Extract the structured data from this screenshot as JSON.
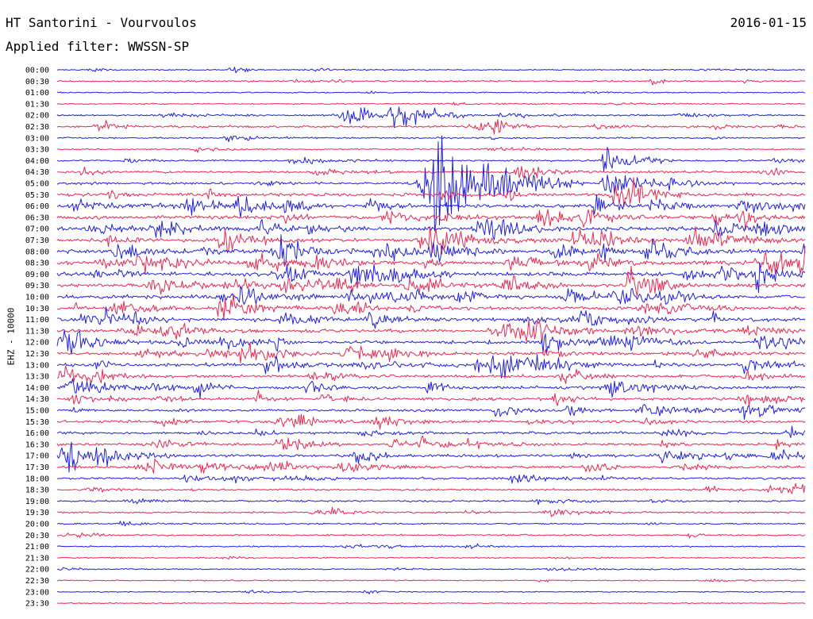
{
  "header": {
    "title": "HT Santorini - Vourvoulos",
    "date": "2016-01-15",
    "filter": "Applied filter: WWSSN-SP",
    "channel": "EHZ - 10000"
  },
  "colors": {
    "blue": "#1f1fe6",
    "red": "#f0264f",
    "text": "#000000",
    "background": "#ffffff"
  },
  "chart_data": {
    "type": "line",
    "title": "HT Santorini - Vourvoulos",
    "subtitle": "Applied filter: WWSSN-SP",
    "ylabel": "EHZ - 10000",
    "xlabel": "",
    "grid": false,
    "legend": "none",
    "x_range_minutes": [
      0,
      30
    ],
    "trace_labels": [
      "00:00",
      "00:30",
      "01:00",
      "01:30",
      "02:00",
      "02:30",
      "03:00",
      "03:30",
      "04:00",
      "04:30",
      "05:00",
      "05:30",
      "06:00",
      "06:30",
      "07:00",
      "07:30",
      "08:00",
      "08:30",
      "09:00",
      "09:30",
      "10:00",
      "10:30",
      "11:00",
      "11:30",
      "12:00",
      "12:30",
      "13:00",
      "13:30",
      "14:00",
      "14:30",
      "15:00",
      "15:30",
      "16:00",
      "16:30",
      "17:00",
      "17:30",
      "18:00",
      "18:30",
      "19:00",
      "19:30",
      "20:00",
      "20:30",
      "21:00",
      "21:30",
      "22:00",
      "22:30",
      "23:00",
      "23:30"
    ],
    "trace_colors_alternate": [
      "blue",
      "red"
    ],
    "relative_activity": [
      0.15,
      0.25,
      0.15,
      0.15,
      0.3,
      0.45,
      0.25,
      0.2,
      0.3,
      0.45,
      0.55,
      0.75,
      0.85,
      0.9,
      0.9,
      0.9,
      0.95,
      0.95,
      0.95,
      0.95,
      0.9,
      0.85,
      0.85,
      0.8,
      0.75,
      0.75,
      0.75,
      0.7,
      0.7,
      0.65,
      0.6,
      0.55,
      0.55,
      0.55,
      0.6,
      0.6,
      0.45,
      0.35,
      0.3,
      0.3,
      0.25,
      0.25,
      0.2,
      0.15,
      0.15,
      0.15,
      0.12,
      0.1
    ],
    "events": [
      {
        "trace": "00:00",
        "minute": 7.0,
        "amplitude": 0.9
      },
      {
        "trace": "00:00",
        "minute": 1.3,
        "amplitude": 0.5
      },
      {
        "trace": "00:30",
        "minute": 11.0,
        "amplitude": 0.6
      },
      {
        "trace": "02:00",
        "minute": 11.5,
        "amplitude": 2.5
      },
      {
        "trace": "02:00",
        "minute": 13.5,
        "amplitude": 4.0
      },
      {
        "trace": "02:30",
        "minute": 1.6,
        "amplitude": 1.5
      },
      {
        "trace": "02:30",
        "minute": 17.5,
        "amplitude": 0.7
      },
      {
        "trace": "03:00",
        "minute": 6.8,
        "amplitude": 0.8
      },
      {
        "trace": "04:00",
        "minute": 22.0,
        "amplitude": 3.5
      },
      {
        "trace": "05:00",
        "minute": 15.0,
        "amplitude": 9.0
      },
      {
        "trace": "05:00",
        "minute": 22.0,
        "amplitude": 3.0
      },
      {
        "trace": "06:00",
        "minute": 9.0,
        "amplitude": 2.0
      },
      {
        "trace": "07:30",
        "minute": 15.0,
        "amplitude": 2.5
      },
      {
        "trace": "08:00",
        "minute": 9.0,
        "amplitude": 2.0
      },
      {
        "trace": "09:00",
        "minute": 28.0,
        "amplitude": 2.5
      },
      {
        "trace": "10:00",
        "minute": 16.0,
        "amplitude": 2.0
      },
      {
        "trace": "12:00",
        "minute": 19.5,
        "amplitude": 2.5
      },
      {
        "trace": "13:00",
        "minute": 17.5,
        "amplitude": 2.0
      },
      {
        "trace": "15:00",
        "minute": 27.5,
        "amplitude": 2.0
      },
      {
        "trace": "16:30",
        "minute": 9.0,
        "amplitude": 2.5
      },
      {
        "trace": "17:00",
        "minute": 0.5,
        "amplitude": 2.5
      },
      {
        "trace": "17:00",
        "minute": 12.0,
        "amplitude": 2.0
      },
      {
        "trace": "17:30",
        "minute": 8.5,
        "amplitude": 2.0
      },
      {
        "trace": "18:30",
        "minute": 26.0,
        "amplitude": 1.0
      },
      {
        "trace": "19:30",
        "minute": 11.0,
        "amplitude": 0.8
      },
      {
        "trace": "21:00",
        "minute": 16.5,
        "amplitude": 0.8
      },
      {
        "trace": "22:00",
        "minute": 0.2,
        "amplitude": 0.6
      },
      {
        "trace": "22:30",
        "minute": 26.0,
        "amplitude": 0.6
      },
      {
        "trace": "23:00",
        "minute": 12.3,
        "amplitude": 0.6
      }
    ]
  }
}
